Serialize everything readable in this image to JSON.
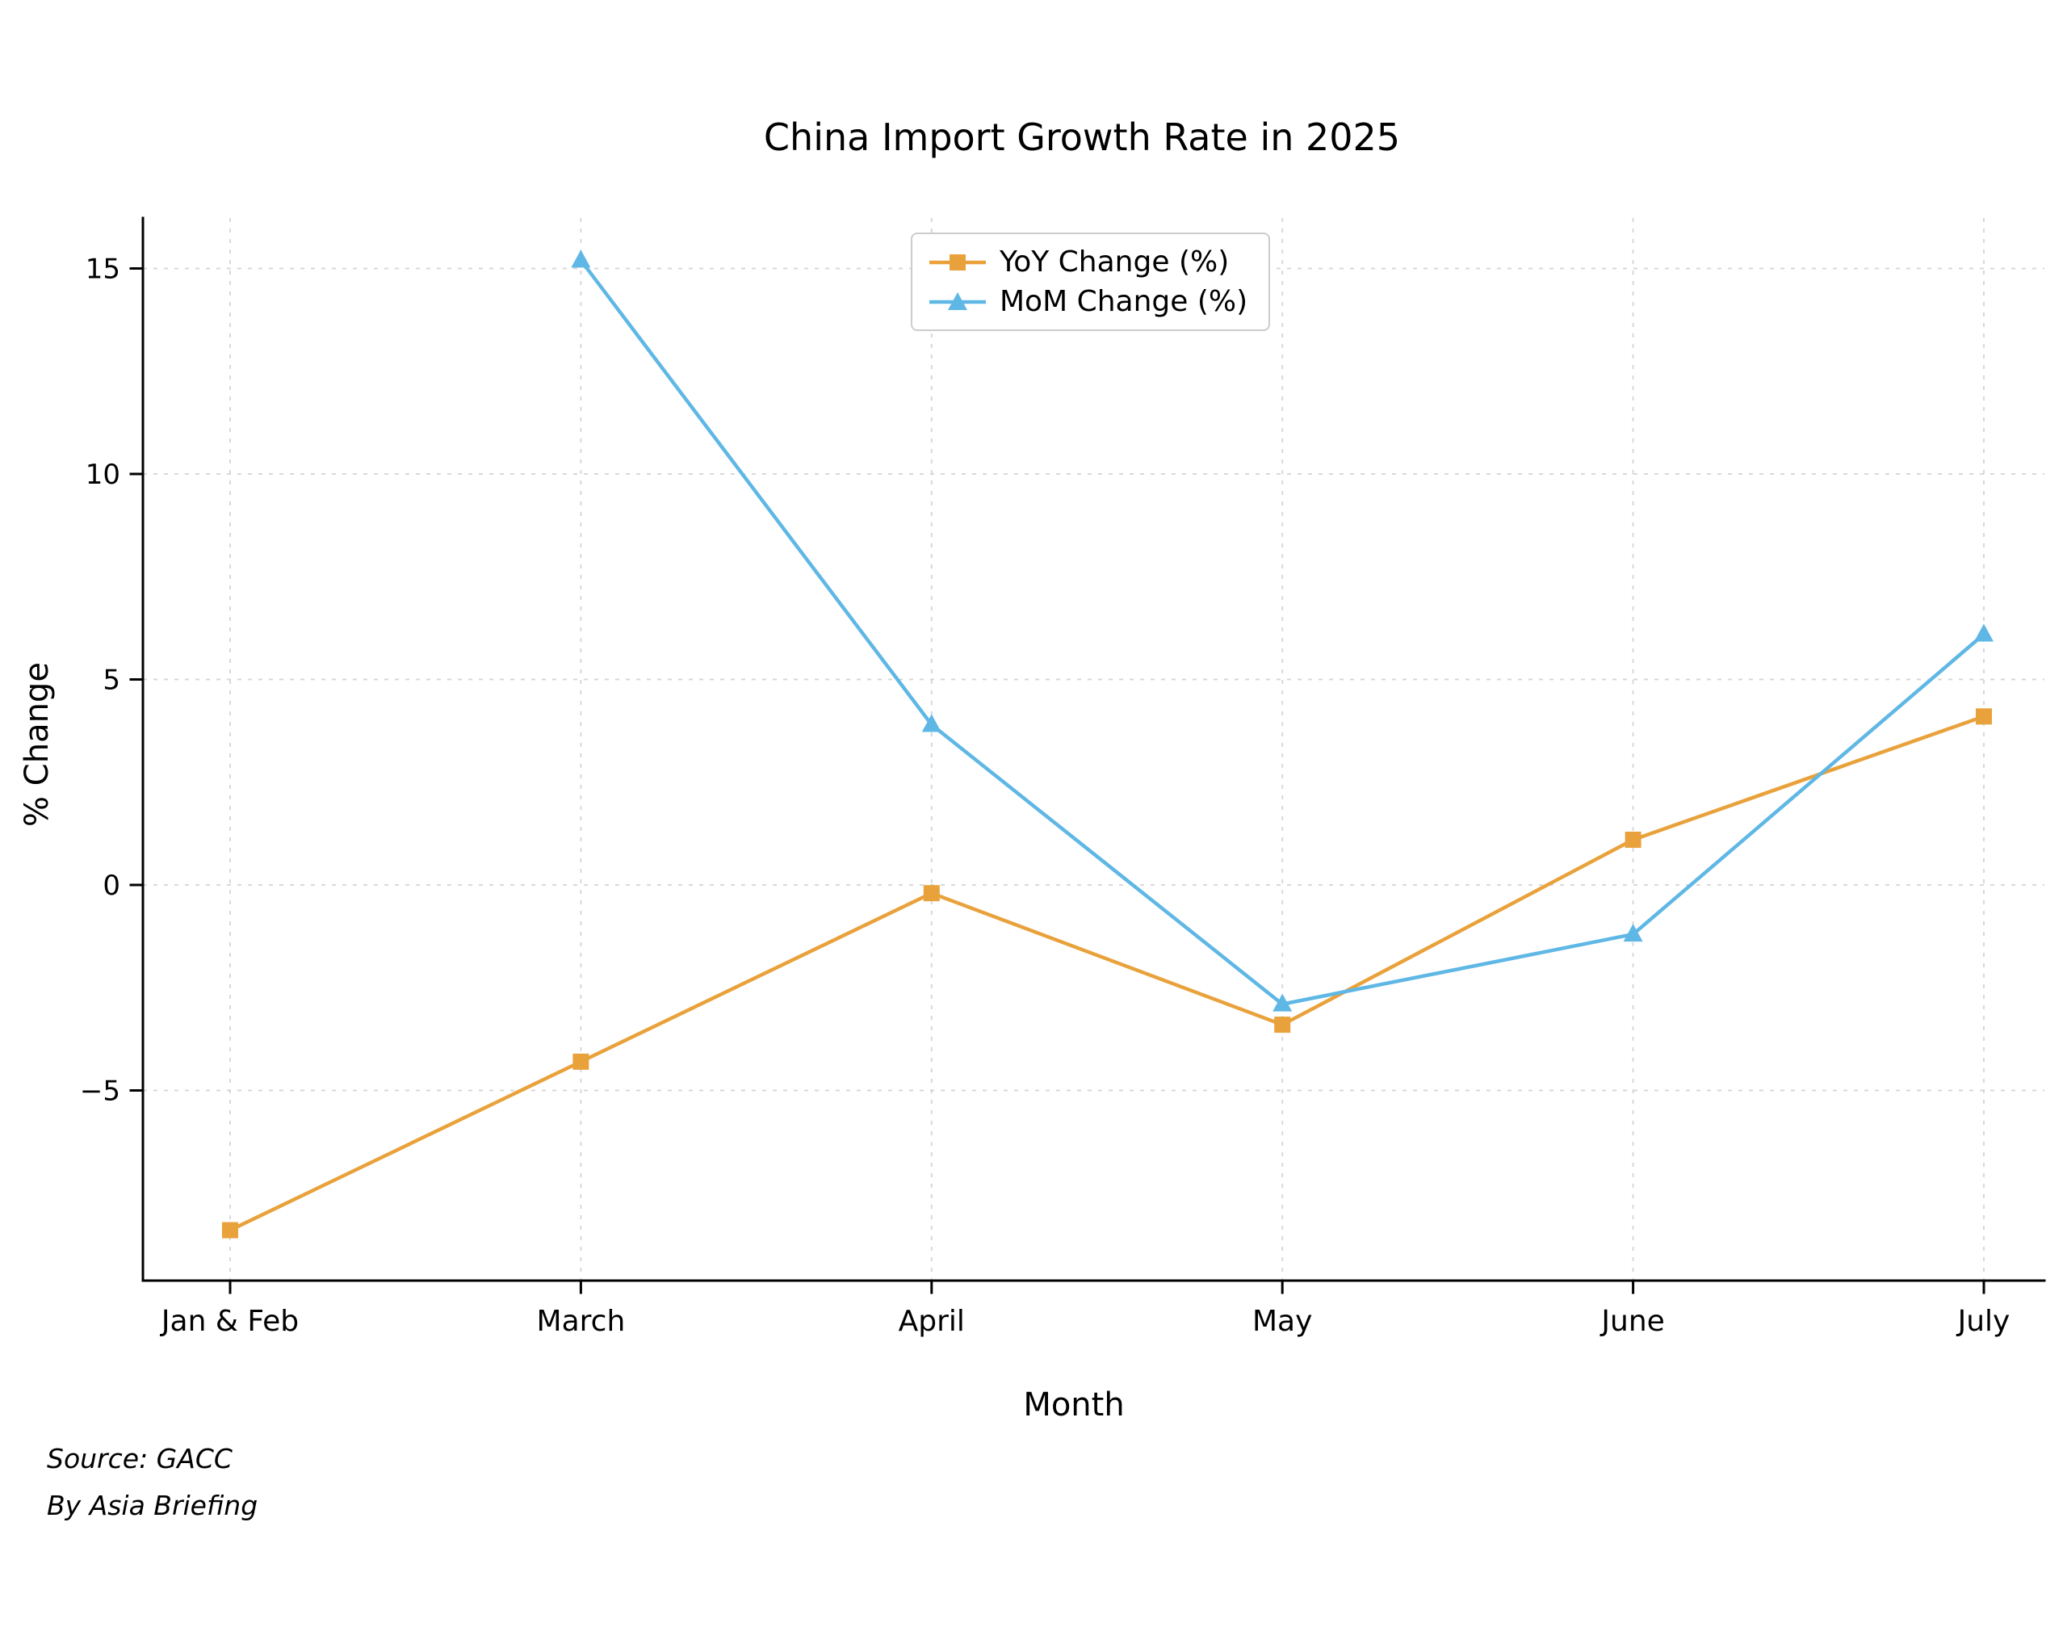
{
  "title": "China Import Growth Rate in 2025",
  "source": {
    "line1": "Source: GACC",
    "line2": "By Asia Briefing"
  },
  "chart_data": {
    "type": "line",
    "title": "China Import Growth Rate in 2025",
    "xlabel": "Month",
    "ylabel": "% Change",
    "categories": [
      "Jan & Feb",
      "March",
      "April",
      "May",
      "June",
      "July"
    ],
    "yticks": [
      -5,
      0,
      5,
      10,
      15
    ],
    "ylim": [
      -9.7,
      16.3
    ],
    "grid": true,
    "grid_style": "dashed",
    "legend_position": "top-center",
    "axis_color": "#000000",
    "grid_color": "#d4d4d4",
    "series": [
      {
        "name": "YoY Change (%)",
        "color": "#E9A23B",
        "marker": "square",
        "values": [
          -8.4,
          -4.3,
          -0.2,
          -3.4,
          1.1,
          4.1
        ]
      },
      {
        "name": "MoM Change (%)",
        "color": "#5FB7E5",
        "marker": "triangle",
        "values": [
          null,
          15.2,
          3.9,
          -2.9,
          -1.2,
          6.1
        ]
      }
    ]
  }
}
